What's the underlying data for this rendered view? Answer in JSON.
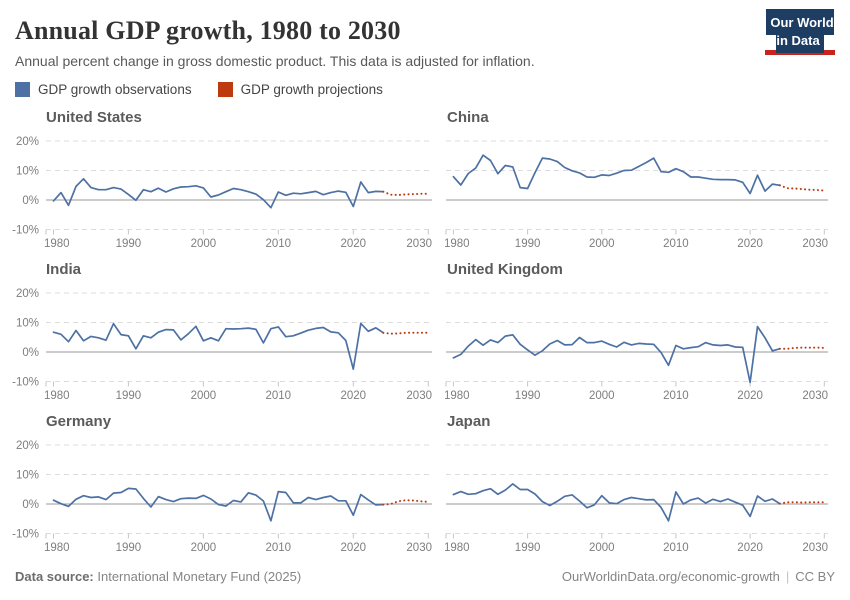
{
  "header": {
    "title": "Annual GDP growth, 1980 to 2030",
    "subtitle": "Annual percent change in gross domestic product. This data is adjusted for inflation.",
    "logo_line1": "Our World",
    "logo_line2": "in Data"
  },
  "legend": {
    "observations_label": "GDP growth observations",
    "projections_label": "GDP growth projections"
  },
  "colors": {
    "observation": "#4d71a4",
    "projection": "#bd3a0f",
    "grid": "#dcdcdc",
    "zero_line": "#999999",
    "tick": "#c6c6c6",
    "axis_text": "#7e7e7e",
    "logo_bg": "#1d3d63",
    "logo_bar": "#c8231d"
  },
  "footer": {
    "source_label": "Data source:",
    "source_value": "International Monetary Fund (2025)",
    "url": "OurWorldinData.org/economic-growth",
    "separator": "|",
    "license": "CC BY"
  },
  "chart_data": [
    {
      "type": "line",
      "country": "United States",
      "unit": "%",
      "ylim": [
        -10,
        20
      ],
      "yticks": [
        20,
        10,
        0,
        -10
      ],
      "xticks": [
        1980,
        1990,
        2000,
        2010,
        2020,
        2030
      ],
      "show_y_axis_labels": true,
      "observations": {
        "start_year": 1980,
        "values": [
          -0.3,
          2.5,
          -1.8,
          4.6,
          7.2,
          4.2,
          3.5,
          3.5,
          4.2,
          3.7,
          1.9,
          -0.1,
          3.5,
          2.8,
          4.0,
          2.7,
          3.8,
          4.4,
          4.5,
          4.8,
          4.1,
          1.0,
          1.7,
          2.8,
          3.9,
          3.5,
          2.8,
          2.0,
          0.1,
          -2.6,
          2.7,
          1.6,
          2.3,
          2.1,
          2.5,
          2.9,
          1.8,
          2.5,
          3.0,
          2.6,
          -2.2,
          6.1,
          2.5,
          2.9,
          2.8
        ]
      },
      "projections": {
        "start_year": 2025,
        "values": [
          1.8,
          1.7,
          1.9,
          2.0,
          2.1,
          2.1
        ]
      }
    },
    {
      "type": "line",
      "country": "China",
      "unit": "%",
      "ylim": [
        -10,
        20
      ],
      "yticks": [
        20,
        10,
        0,
        -10
      ],
      "xticks": [
        1980,
        1990,
        2000,
        2010,
        2020,
        2030
      ],
      "show_y_axis_labels": false,
      "observations": {
        "start_year": 1980,
        "values": [
          7.9,
          5.1,
          9.0,
          10.8,
          15.2,
          13.4,
          8.9,
          11.7,
          11.2,
          4.2,
          3.9,
          9.3,
          14.2,
          13.9,
          13.0,
          11.0,
          9.9,
          9.2,
          7.8,
          7.7,
          8.5,
          8.3,
          9.1,
          10.0,
          10.1,
          11.4,
          12.7,
          14.2,
          9.6,
          9.4,
          10.6,
          9.6,
          7.8,
          7.8,
          7.4,
          7.0,
          6.9,
          6.9,
          6.8,
          6.0,
          2.2,
          8.4,
          3.0,
          5.4,
          5.0
        ]
      },
      "projections": {
        "start_year": 2025,
        "values": [
          4.0,
          3.9,
          3.7,
          3.5,
          3.4,
          3.2
        ]
      }
    },
    {
      "type": "line",
      "country": "India",
      "unit": "%",
      "ylim": [
        -10,
        20
      ],
      "yticks": [
        20,
        10,
        0,
        -10
      ],
      "xticks": [
        1980,
        1990,
        2000,
        2010,
        2020,
        2030
      ],
      "show_y_axis_labels": true,
      "observations": {
        "start_year": 1980,
        "values": [
          6.7,
          6.0,
          3.5,
          7.3,
          3.8,
          5.3,
          4.8,
          4.0,
          9.6,
          5.9,
          5.5,
          1.1,
          5.5,
          4.8,
          6.7,
          7.6,
          7.5,
          4.1,
          6.2,
          8.7,
          3.8,
          4.8,
          3.8,
          7.9,
          7.8,
          7.9,
          8.1,
          7.7,
          3.1,
          7.9,
          8.5,
          5.2,
          5.5,
          6.4,
          7.4,
          8.0,
          8.3,
          6.8,
          6.5,
          3.9,
          -5.8,
          9.7,
          7.0,
          8.2,
          6.5
        ]
      },
      "projections": {
        "start_year": 2025,
        "values": [
          6.2,
          6.3,
          6.5,
          6.5,
          6.5,
          6.5
        ]
      }
    },
    {
      "type": "line",
      "country": "United Kingdom",
      "unit": "%",
      "ylim": [
        -10,
        20
      ],
      "yticks": [
        20,
        10,
        0,
        -10
      ],
      "xticks": [
        1980,
        1990,
        2000,
        2010,
        2020,
        2030
      ],
      "show_y_axis_labels": false,
      "observations": {
        "start_year": 1980,
        "values": [
          -2.0,
          -0.8,
          2.0,
          4.2,
          2.3,
          4.1,
          3.2,
          5.4,
          5.8,
          2.6,
          0.7,
          -1.1,
          0.4,
          2.7,
          3.9,
          2.4,
          2.5,
          4.9,
          3.2,
          3.2,
          3.7,
          2.6,
          1.7,
          3.3,
          2.4,
          2.9,
          2.7,
          2.6,
          -0.2,
          -4.5,
          2.2,
          1.1,
          1.5,
          1.8,
          3.2,
          2.4,
          2.2,
          2.4,
          1.7,
          1.6,
          -10.3,
          8.6,
          4.8,
          0.4,
          1.1
        ]
      },
      "projections": {
        "start_year": 2025,
        "values": [
          1.1,
          1.4,
          1.5,
          1.5,
          1.5,
          1.4
        ]
      }
    },
    {
      "type": "line",
      "country": "Germany",
      "unit": "%",
      "ylim": [
        -10,
        20
      ],
      "yticks": [
        20,
        10,
        0,
        -10
      ],
      "xticks": [
        1980,
        1990,
        2000,
        2010,
        2020,
        2030
      ],
      "show_y_axis_labels": true,
      "observations": {
        "start_year": 1980,
        "values": [
          1.3,
          0.1,
          -0.8,
          1.6,
          2.8,
          2.2,
          2.4,
          1.5,
          3.7,
          3.9,
          5.3,
          5.1,
          1.9,
          -1.0,
          2.5,
          1.5,
          0.8,
          1.8,
          2.0,
          1.9,
          2.9,
          1.7,
          -0.2,
          -0.7,
          1.2,
          0.7,
          3.8,
          3.0,
          1.0,
          -5.7,
          4.2,
          3.9,
          0.4,
          0.4,
          2.2,
          1.5,
          2.2,
          2.7,
          1.1,
          1.1,
          -3.8,
          3.2,
          1.4,
          -0.3,
          -0.2
        ]
      },
      "projections": {
        "start_year": 2025,
        "values": [
          0.0,
          0.9,
          1.3,
          1.2,
          0.9,
          0.7
        ]
      }
    },
    {
      "type": "line",
      "country": "Japan",
      "unit": "%",
      "ylim": [
        -10,
        20
      ],
      "yticks": [
        20,
        10,
        0,
        -10
      ],
      "xticks": [
        1980,
        1990,
        2000,
        2010,
        2020,
        2030
      ],
      "show_y_axis_labels": false,
      "observations": {
        "start_year": 1980,
        "values": [
          3.2,
          4.2,
          3.3,
          3.5,
          4.5,
          5.2,
          3.3,
          4.7,
          6.8,
          4.9,
          4.9,
          3.4,
          0.8,
          -0.5,
          0.9,
          2.6,
          3.1,
          1.0,
          -1.3,
          -0.3,
          2.8,
          0.4,
          0.1,
          1.5,
          2.2,
          1.8,
          1.4,
          1.5,
          -1.2,
          -5.7,
          4.1,
          0.0,
          1.4,
          2.0,
          0.3,
          1.6,
          0.8,
          1.7,
          0.6,
          -0.4,
          -4.2,
          2.7,
          0.9,
          1.7,
          0.1
        ]
      },
      "projections": {
        "start_year": 2025,
        "values": [
          0.6,
          0.6,
          0.5,
          0.6,
          0.6,
          0.6
        ]
      }
    }
  ]
}
